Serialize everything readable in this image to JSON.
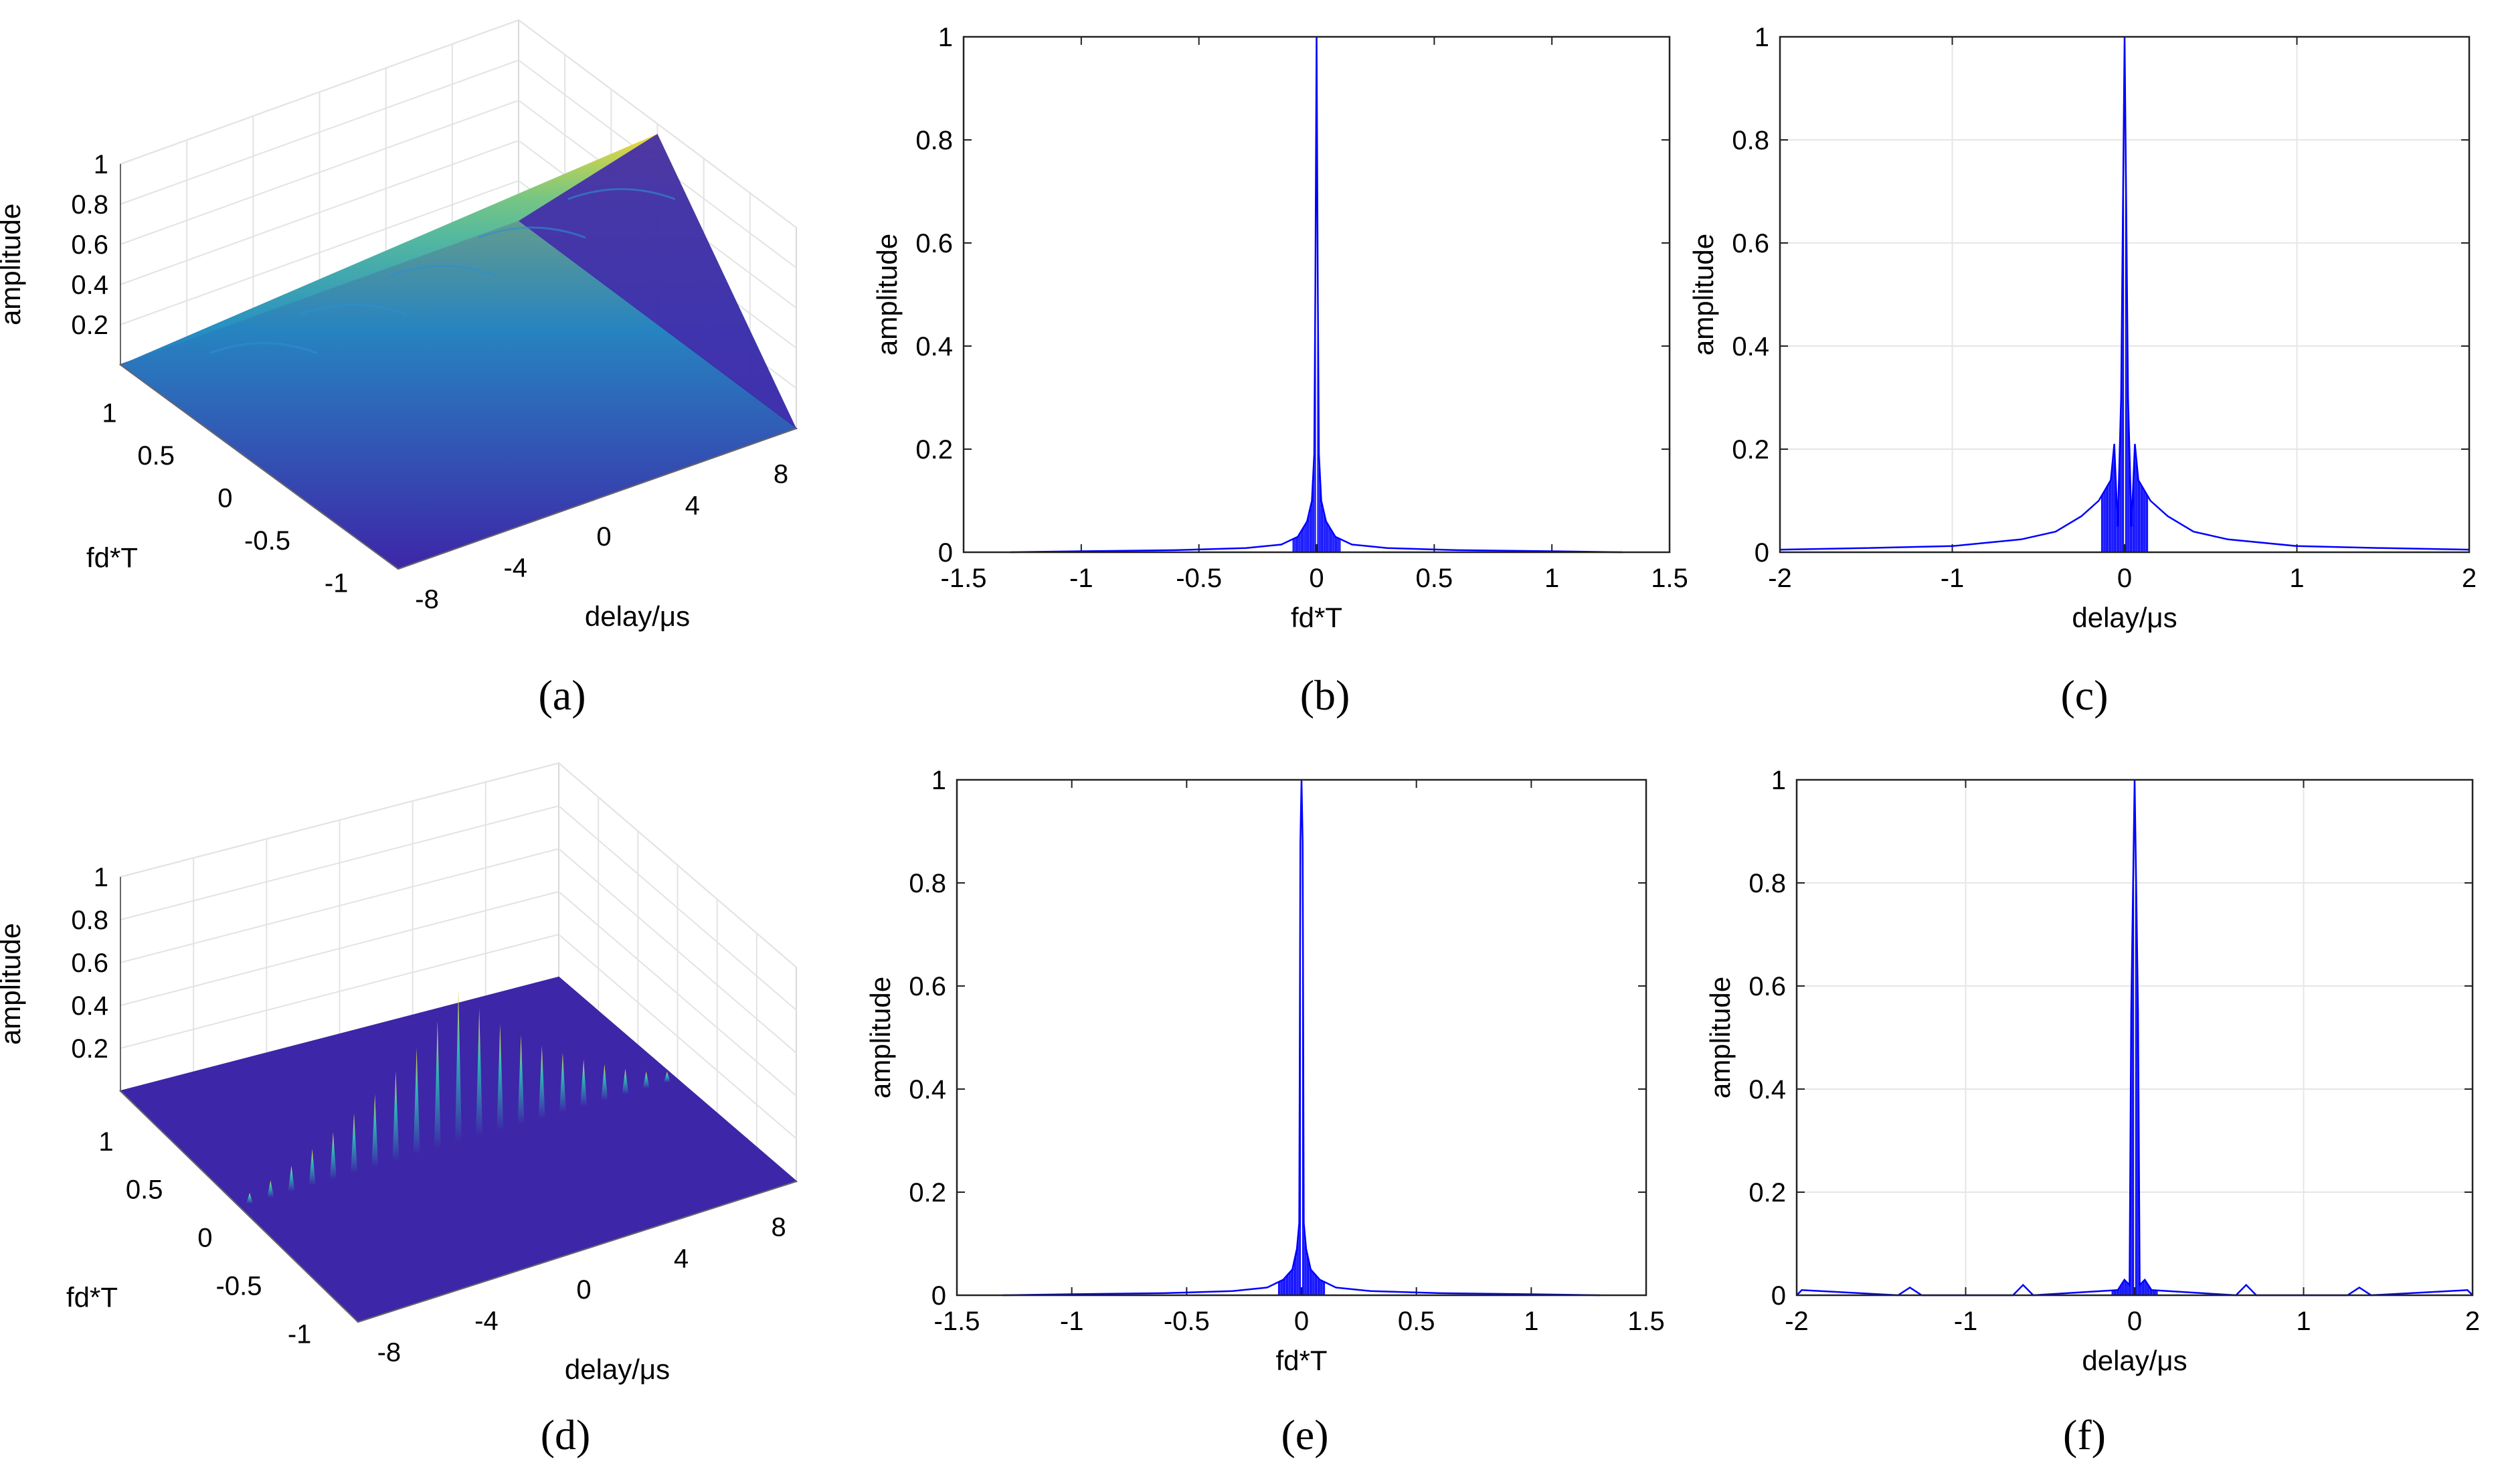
{
  "colors": {
    "surface_base": "#3d26a8",
    "surface_mid": "#1fa3c8",
    "surface_high": "#f5d633",
    "line": "#0000ff",
    "grid": "#e6e6e6"
  },
  "chart_data": [
    {
      "panel": "a",
      "caption": "(a)",
      "type": "surface",
      "xlabel": "fd*T",
      "ylabel": "delay/μs",
      "zlabel": "amplitude",
      "x_ticks": [
        "1",
        "0.5",
        "0",
        "-0.5",
        "-1"
      ],
      "y_ticks": [
        "-8",
        "-4",
        "0",
        "4",
        "8"
      ],
      "z_ticks": [
        "0.2",
        "0.4",
        "0.6",
        "0.8",
        "1"
      ],
      "xlim": [
        -1.2,
        1.2
      ],
      "ylim": [
        -9,
        9
      ],
      "zlim": [
        0,
        1
      ],
      "shape": "triangular ridge",
      "peak_amplitude": 1
    },
    {
      "panel": "b",
      "caption": "(b)",
      "type": "line",
      "xlabel": "fd*T",
      "ylabel": "amplitude",
      "x_ticks": [
        "-1.5",
        "-1",
        "-0.5",
        "0",
        "0.5",
        "1",
        "1.5"
      ],
      "y_ticks": [
        "0",
        "0.2",
        "0.4",
        "0.6",
        "0.8",
        "1"
      ],
      "xlim": [
        -1.5,
        1.5
      ],
      "ylim": [
        0,
        1
      ],
      "grid": false,
      "series": [
        {
          "x": [
            -1.3,
            -1.0,
            -0.6,
            -0.3,
            -0.15,
            -0.08,
            -0.04,
            -0.02,
            -0.01,
            -0.005,
            0,
            0.005,
            0.01,
            0.02,
            0.04,
            0.08,
            0.15,
            0.3,
            0.6,
            1.0,
            1.3
          ],
          "y": [
            0,
            0.002,
            0.004,
            0.008,
            0.015,
            0.03,
            0.06,
            0.1,
            0.19,
            0.52,
            1.0,
            0.52,
            0.19,
            0.1,
            0.06,
            0.03,
            0.015,
            0.008,
            0.004,
            0.002,
            0
          ]
        }
      ]
    },
    {
      "panel": "c",
      "caption": "(c)",
      "type": "line",
      "xlabel": "delay/μs",
      "ylabel": "amplitude",
      "x_ticks": [
        "-2",
        "-1",
        "0",
        "1",
        "2"
      ],
      "y_ticks": [
        "0",
        "0.2",
        "0.4",
        "0.6",
        "0.8",
        "1"
      ],
      "xlim": [
        -2,
        2
      ],
      "ylim": [
        0,
        1
      ],
      "grid": true,
      "series": [
        {
          "x": [
            -2.0,
            -1.5,
            -1.0,
            -0.6,
            -0.4,
            -0.25,
            -0.15,
            -0.08,
            -0.06,
            -0.04,
            -0.02,
            0,
            0.02,
            0.04,
            0.06,
            0.08,
            0.15,
            0.25,
            0.4,
            0.6,
            1.0,
            1.5,
            2.0
          ],
          "y": [
            0.005,
            0.008,
            0.012,
            0.025,
            0.04,
            0.07,
            0.1,
            0.14,
            0.21,
            0.05,
            0.3,
            1.0,
            0.3,
            0.05,
            0.21,
            0.14,
            0.1,
            0.07,
            0.04,
            0.025,
            0.012,
            0.008,
            0.005
          ]
        }
      ]
    },
    {
      "panel": "d",
      "caption": "(d)",
      "type": "surface",
      "xlabel": "fd*T",
      "ylabel": "delay/μs",
      "zlabel": "amplitude",
      "x_ticks": [
        "1",
        "0.5",
        "0",
        "-0.5",
        "-1"
      ],
      "y_ticks": [
        "-8",
        "-4",
        "0",
        "4",
        "8"
      ],
      "z_ticks": [
        "0.2",
        "0.4",
        "0.6",
        "0.8",
        "1"
      ],
      "xlim": [
        -1.2,
        1.2
      ],
      "ylim": [
        -9,
        9
      ],
      "zlim": [
        0,
        1
      ],
      "shape": "row of spikes",
      "spikes": [
        0.05,
        0.08,
        0.12,
        0.17,
        0.22,
        0.28,
        0.34,
        0.42,
        0.5,
        0.6,
        0.72,
        0.6,
        0.5,
        0.42,
        0.34,
        0.28,
        0.22,
        0.17,
        0.12,
        0.08,
        0.05
      ]
    },
    {
      "panel": "e",
      "caption": "(e)",
      "type": "line",
      "xlabel": "fd*T",
      "ylabel": "amplitude",
      "x_ticks": [
        "-1.5",
        "-1",
        "-0.5",
        "0",
        "0.5",
        "1",
        "1.5"
      ],
      "y_ticks": [
        "0",
        "0.2",
        "0.4",
        "0.6",
        "0.8",
        "1"
      ],
      "xlim": [
        -1.5,
        1.5
      ],
      "ylim": [
        0,
        1
      ],
      "grid": false,
      "series": [
        {
          "x": [
            -1.3,
            -1.0,
            -0.6,
            -0.3,
            -0.15,
            -0.08,
            -0.04,
            -0.02,
            -0.01,
            -0.005,
            0,
            0.005,
            0.01,
            0.02,
            0.04,
            0.08,
            0.15,
            0.3,
            0.6,
            1.0,
            1.3
          ],
          "y": [
            0,
            0.002,
            0.004,
            0.008,
            0.015,
            0.03,
            0.05,
            0.09,
            0.14,
            0.88,
            1.0,
            0.88,
            0.14,
            0.09,
            0.05,
            0.03,
            0.015,
            0.008,
            0.004,
            0.002,
            0
          ]
        }
      ]
    },
    {
      "panel": "f",
      "caption": "(f)",
      "type": "line",
      "xlabel": "delay/μs",
      "ylabel": "amplitude",
      "x_ticks": [
        "-2",
        "-1",
        "0",
        "1",
        "2"
      ],
      "y_ticks": [
        "0",
        "0.2",
        "0.4",
        "0.6",
        "0.8",
        "1"
      ],
      "xlim": [
        -2,
        2
      ],
      "ylim": [
        0,
        1
      ],
      "grid": true,
      "series": [
        {
          "x": [
            -2.0,
            -1.97,
            -1.4,
            -1.33,
            -1.26,
            -0.72,
            -0.66,
            -0.6,
            -0.1,
            -0.06,
            -0.03,
            -0.02,
            0,
            0.02,
            0.03,
            0.06,
            0.1,
            0.6,
            0.66,
            0.72,
            1.26,
            1.33,
            1.4,
            1.97,
            2.0
          ],
          "y": [
            0,
            0.01,
            0,
            0.015,
            0,
            0,
            0.02,
            0,
            0.01,
            0.03,
            0.02,
            0.55,
            1.0,
            0.55,
            0.02,
            0.03,
            0.01,
            0,
            0.02,
            0,
            0,
            0.015,
            0,
            0.01,
            0
          ]
        }
      ]
    }
  ]
}
